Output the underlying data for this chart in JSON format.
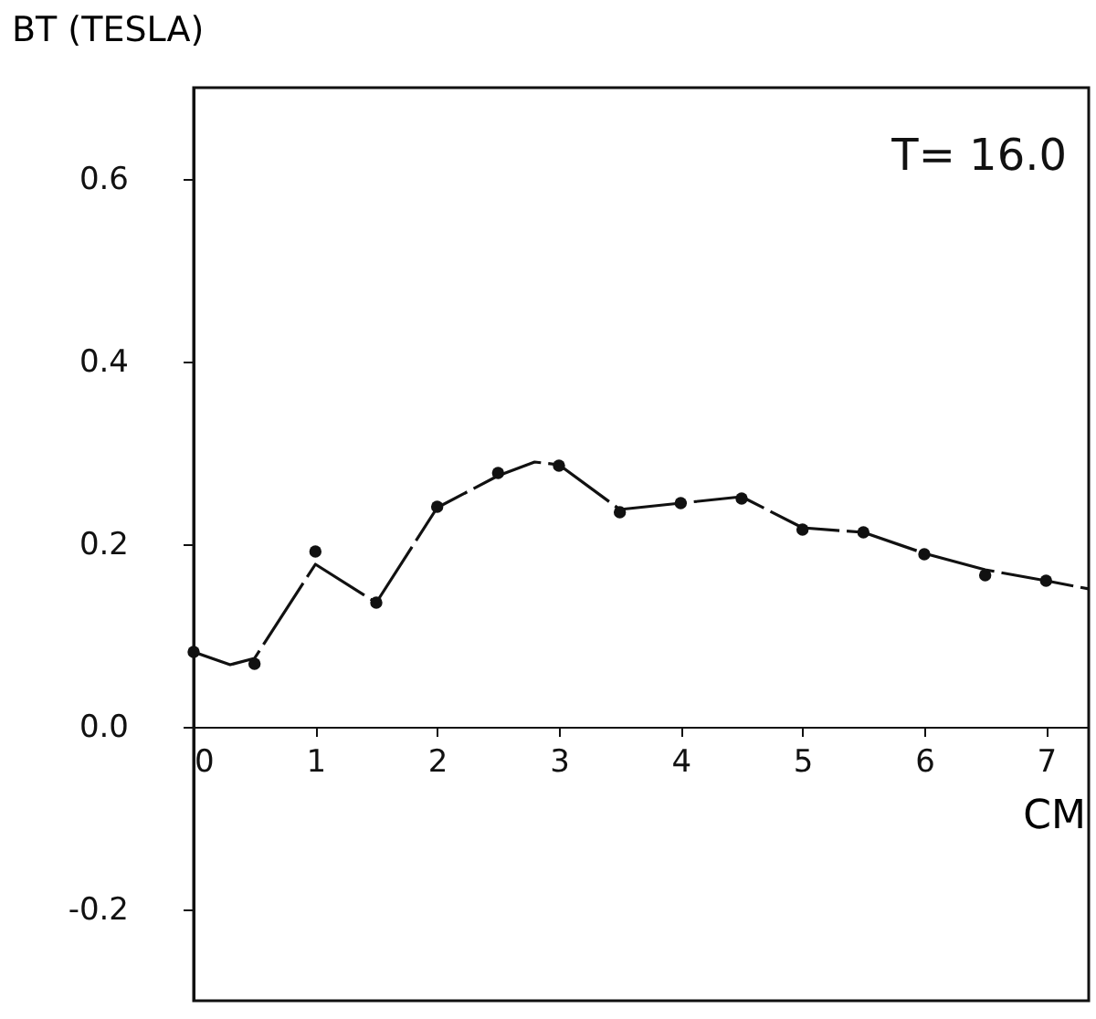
{
  "chart_data": {
    "type": "scatter",
    "xlabel": "CM",
    "ylabel": "BT (TESLA)",
    "annotations": [
      "T= 16.0"
    ],
    "xlim": [
      0,
      7.35
    ],
    "ylim": [
      -0.3,
      0.7
    ],
    "xticks": [
      0,
      1,
      2,
      3,
      4,
      5,
      6,
      7
    ],
    "yticks": [
      {
        "value": -0.2,
        "label": "-0.2"
      },
      {
        "value": 0,
        "label": "0.0"
      },
      {
        "value": 0.2,
        "label": "0.2"
      },
      {
        "value": 0.4,
        "label": "0.4"
      },
      {
        "value": 0.6,
        "label": "0.6"
      }
    ],
    "grid": false,
    "series": [
      {
        "color": "#111111",
        "marker": "circle",
        "x": [
          0,
          0.5,
          1,
          1.5,
          2,
          2.5,
          3,
          3.5,
          4,
          4.5,
          5,
          5.5,
          6,
          6.5,
          7
        ],
        "values": [
          0.082,
          0.069,
          0.192,
          0.136,
          0.241,
          0.278,
          0.286,
          0.235,
          0.245,
          0.25,
          0.216,
          0.213,
          0.189,
          0.166,
          0.16
        ]
      },
      {
        "type": "line",
        "color": "#111111",
        "line_style": "dashed",
        "x": [
          0,
          0.3,
          0.5,
          1,
          1.5,
          2,
          2.5,
          2.8,
          3,
          3.5,
          4,
          4.5,
          5,
          5.5,
          6,
          6.5,
          7,
          7.35
        ],
        "values": [
          0.082,
          0.068,
          0.075,
          0.178,
          0.136,
          0.24,
          0.275,
          0.29,
          0.287,
          0.238,
          0.245,
          0.252,
          0.218,
          0.213,
          0.19,
          0.172,
          0.16,
          0.151
        ]
      }
    ]
  }
}
